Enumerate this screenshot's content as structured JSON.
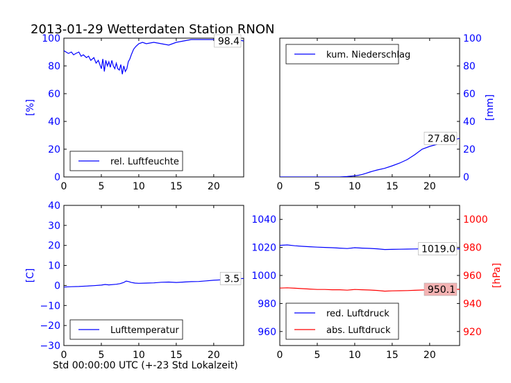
{
  "page": {
    "title": "2013-01-29 Wetterdaten Station RNON",
    "xlabel": "Std 00:00:00 UTC (+-23 Std Lokalzeit)"
  },
  "chart_data": [
    {
      "id": "humidity",
      "type": "line",
      "xlim": [
        0,
        24
      ],
      "ylim": [
        0,
        100
      ],
      "xticks": [
        "0",
        "5",
        "10",
        "15",
        "20"
      ],
      "yticks": [
        "0",
        "20",
        "40",
        "60",
        "80",
        "100"
      ],
      "ylabel": "[%]",
      "ylabel_color": "#0000ff",
      "tick_color": "#0000ff",
      "legend_location": "lower-left",
      "annotation": "98.4",
      "series": [
        {
          "name": "rel. Luftfeuchte",
          "color": "#0000ff",
          "x": [
            0,
            0.3,
            0.6,
            1,
            1.3,
            1.6,
            2,
            2.3,
            2.6,
            3,
            3.3,
            3.6,
            4,
            4.3,
            4.6,
            5,
            5.2,
            5.4,
            5.6,
            5.8,
            6,
            6.2,
            6.4,
            6.6,
            6.8,
            7,
            7.2,
            7.4,
            7.6,
            7.8,
            8,
            8.2,
            8.4,
            8.6,
            8.8,
            9,
            9.3,
            9.6,
            10,
            10.5,
            11,
            12,
            13,
            14,
            15,
            16,
            17,
            18,
            19,
            20,
            21,
            22,
            23,
            24
          ],
          "y": [
            91,
            90,
            89,
            90,
            88,
            89,
            90,
            87,
            88,
            86,
            87,
            84,
            86,
            82,
            84,
            78,
            85,
            76,
            84,
            80,
            83,
            79,
            84,
            80,
            78,
            82,
            78,
            77,
            81,
            74,
            80,
            76,
            78,
            83,
            85,
            88,
            92,
            94,
            96,
            97,
            96,
            97,
            96,
            95,
            97,
            98,
            99,
            99,
            99,
            99,
            100,
            99,
            99,
            98
          ]
        }
      ]
    },
    {
      "id": "precip",
      "type": "line",
      "xlim": [
        0,
        24
      ],
      "ylim": [
        0,
        100
      ],
      "xticks": [
        "0",
        "5",
        "10",
        "15",
        "20"
      ],
      "yticks": [
        "0",
        "20",
        "40",
        "60",
        "80",
        "100"
      ],
      "ylabel": "[mm]",
      "ylabel_color": "#0000ff",
      "tick_color": "#0000ff",
      "legend_location": "upper-left",
      "annotation": "27.80",
      "series": [
        {
          "name": "kum. Niederschlag",
          "color": "#0000ff",
          "x": [
            0,
            2,
            4,
            6,
            8,
            9,
            10,
            10.5,
            11,
            11.5,
            12,
            12.5,
            13,
            14,
            15,
            16,
            17,
            18,
            19,
            20,
            21,
            22,
            23,
            24
          ],
          "y": [
            0,
            0,
            0,
            0,
            0,
            0.3,
            0.8,
            1.2,
            1.8,
            2.6,
            3.5,
            4.3,
            5,
            6.2,
            8,
            10,
            12.5,
            16,
            20,
            22,
            23.5,
            25,
            26.5,
            27.8
          ]
        }
      ]
    },
    {
      "id": "temperature",
      "type": "line",
      "xlim": [
        0,
        24
      ],
      "ylim": [
        -30,
        40
      ],
      "xticks": [
        "0",
        "5",
        "10",
        "15",
        "20"
      ],
      "yticks": [
        "−30",
        "−20",
        "−10",
        "0",
        "10",
        "20",
        "30",
        "40"
      ],
      "ylabel": "[C]",
      "ylabel_color": "#0000ff",
      "tick_color": "#0000ff",
      "legend_location": "lower-left",
      "annotation": "3.5",
      "series": [
        {
          "name": "Lufttemperatur",
          "color": "#0000ff",
          "x": [
            0,
            1,
            2,
            3,
            4,
            5,
            5.5,
            6,
            7,
            7.5,
            8,
            8.3,
            8.6,
            9,
            9.5,
            10,
            11,
            12,
            13,
            14,
            15,
            16,
            17,
            18,
            19,
            20,
            21,
            22,
            23,
            24
          ],
          "y": [
            -0.8,
            -0.6,
            -0.5,
            -0.3,
            -0.1,
            0.2,
            0.5,
            0.3,
            0.6,
            0.9,
            1.5,
            2.2,
            2,
            1.5,
            1.2,
            1.1,
            1.2,
            1.3,
            1.6,
            1.7,
            1.5,
            1.7,
            1.9,
            2,
            2.3,
            2.6,
            2.8,
            3.1,
            3.3,
            3.5
          ]
        }
      ]
    },
    {
      "id": "pressure",
      "type": "line",
      "xlim": [
        0,
        24
      ],
      "ylim": [
        950,
        1050
      ],
      "ylim_right": [
        910,
        1010
      ],
      "xticks": [
        "0",
        "5",
        "10",
        "15",
        "20"
      ],
      "yticks": [
        "960",
        "980",
        "1000",
        "1020",
        "1040"
      ],
      "yticks_right": [
        "920",
        "940",
        "960",
        "980",
        "1000"
      ],
      "ylabel_right": "[hPa]",
      "ylabel_right_color": "#ff0000",
      "tick_color": "#0000ff",
      "tick_color_right": "#ff0000",
      "legend_location": "lower-left",
      "annotation": "1019.0",
      "annotation_right": "950.1",
      "series": [
        {
          "name": "red. Luftdruck",
          "color": "#0000ff",
          "axis": "left",
          "x": [
            0,
            1,
            2,
            3,
            4,
            5,
            6,
            7,
            8,
            9,
            10,
            11,
            12,
            13,
            14,
            15,
            16,
            17,
            18,
            19,
            20,
            21,
            22,
            23,
            24
          ],
          "y": [
            1021.5,
            1021.8,
            1021.2,
            1020.8,
            1020.5,
            1020.2,
            1020,
            1019.8,
            1019.5,
            1019.2,
            1019.8,
            1019.5,
            1019.3,
            1019,
            1018.5,
            1018.6,
            1018.7,
            1018.8,
            1018.9,
            1019,
            1019,
            1019.1,
            1019,
            1019.1,
            1019
          ]
        },
        {
          "name": "abs. Luftdruck",
          "color": "#ff0000",
          "axis": "right",
          "x": [
            0,
            1,
            2,
            3,
            4,
            5,
            6,
            7,
            8,
            9,
            10,
            11,
            12,
            13,
            14,
            15,
            16,
            17,
            18,
            19,
            20,
            21,
            22,
            23,
            24
          ],
          "y": [
            951,
            951.2,
            950.9,
            950.6,
            950.3,
            950,
            950,
            949.8,
            949.8,
            949.5,
            950,
            949.8,
            949.6,
            949.3,
            948.8,
            949,
            949.1,
            949.2,
            949.4,
            949.6,
            949.8,
            950,
            950,
            950.1,
            950.1
          ]
        }
      ]
    }
  ]
}
